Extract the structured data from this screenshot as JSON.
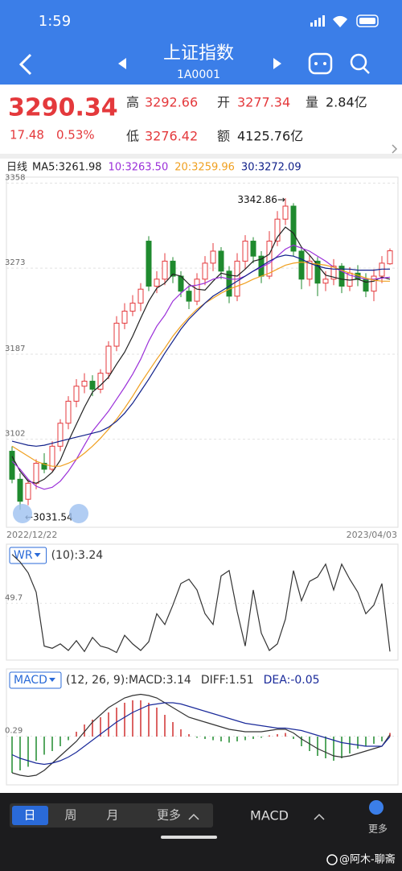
{
  "status": {
    "time": "1:59"
  },
  "header": {
    "title": "上证指数",
    "code": "1A0001"
  },
  "quote": {
    "price": "3290.34",
    "change": "17.48",
    "change_pct": "0.53%",
    "stats": [
      {
        "label": "高",
        "value": "3292.66"
      },
      {
        "label": "开",
        "value": "3277.34"
      },
      {
        "label": "量",
        "value": "2.84亿"
      },
      {
        "label": "低",
        "value": "3276.42"
      },
      {
        "label": "额",
        "value": "4125.76亿"
      }
    ]
  },
  "chart_data": [
    {
      "type": "candlestick",
      "period": "日线",
      "categories": [
        "2022/12/22",
        null,
        null,
        null,
        null,
        null,
        null,
        null,
        null,
        null,
        null,
        null,
        null,
        null,
        null,
        null,
        null,
        null,
        null,
        null,
        null,
        null,
        null,
        null,
        null,
        null,
        null,
        null,
        null,
        null,
        null,
        null,
        null,
        null,
        null,
        null,
        null,
        null,
        null,
        null,
        null,
        null,
        null,
        null,
        null,
        null,
        null,
        "2023/04/03"
      ],
      "open": [
        3090,
        3062,
        3042,
        3058,
        3078,
        3072,
        3095,
        3118,
        3140,
        3155,
        3160,
        3152,
        3168,
        3195,
        3218,
        3230,
        3238,
        3300,
        3255,
        3262,
        3280,
        3265,
        3250,
        3240,
        3262,
        3278,
        3290,
        3270,
        3245,
        3280,
        3300,
        3285,
        3265,
        3300,
        3322,
        3335,
        3290,
        3262,
        3280,
        3258,
        3262,
        3275,
        3255,
        3268,
        3262,
        3250,
        3265,
        3277.34
      ],
      "close": [
        3062,
        3040,
        3058,
        3078,
        3072,
        3095,
        3118,
        3140,
        3155,
        3160,
        3152,
        3168,
        3195,
        3218,
        3230,
        3238,
        3252,
        3255,
        3262,
        3280,
        3265,
        3250,
        3240,
        3262,
        3278,
        3290,
        3270,
        3245,
        3280,
        3300,
        3285,
        3265,
        3300,
        3322,
        3335,
        3290,
        3262,
        3280,
        3258,
        3262,
        3275,
        3255,
        3268,
        3262,
        3250,
        3265,
        3278,
        3290.34
      ],
      "high": [
        3095,
        3068,
        3062,
        3082,
        3088,
        3100,
        3122,
        3145,
        3162,
        3168,
        3166,
        3172,
        3200,
        3225,
        3238,
        3246,
        3258,
        3305,
        3270,
        3288,
        3284,
        3270,
        3256,
        3268,
        3285,
        3298,
        3294,
        3275,
        3288,
        3306,
        3304,
        3290,
        3310,
        3330,
        3342.86,
        3338,
        3294,
        3286,
        3284,
        3270,
        3282,
        3278,
        3274,
        3276,
        3268,
        3272,
        3285,
        3292.66
      ],
      "low": [
        3058,
        3031.54,
        3036,
        3052,
        3068,
        3070,
        3090,
        3112,
        3134,
        3148,
        3145,
        3148,
        3162,
        3190,
        3212,
        3225,
        3230,
        3250,
        3248,
        3256,
        3258,
        3244,
        3232,
        3236,
        3256,
        3270,
        3262,
        3238,
        3240,
        3272,
        3278,
        3258,
        3262,
        3295,
        3316,
        3285,
        3252,
        3255,
        3245,
        3250,
        3256,
        3248,
        3250,
        3255,
        3244,
        3240,
        3258,
        3276.42
      ],
      "up_color": "#e4393c",
      "down_color": "#1f8a2e",
      "max_label": "3342.86→",
      "min_label": "←3031.54",
      "series": [
        {
          "name": "MA5:3261.98",
          "color": "#222222",
          "values": [
            3085,
            3070,
            3060,
            3058,
            3062,
            3069,
            3081,
            3100,
            3117,
            3134,
            3149,
            3156,
            3164,
            3177,
            3189,
            3205,
            3223,
            3240,
            3253,
            3258,
            3267,
            3265,
            3257,
            3252,
            3251,
            3260,
            3268,
            3266,
            3265,
            3272,
            3280,
            3282,
            3287,
            3304,
            3314,
            3308,
            3294,
            3286,
            3276,
            3266,
            3264,
            3262,
            3261,
            3262,
            3259,
            3260,
            3264,
            3262
          ]
        },
        {
          "name": "10:3263.50",
          "color": "#9b30d9",
          "values": [
            3080,
            3072,
            3062,
            3055,
            3052,
            3054,
            3060,
            3070,
            3082,
            3096,
            3110,
            3120,
            3130,
            3142,
            3154,
            3167,
            3182,
            3200,
            3215,
            3226,
            3240,
            3248,
            3255,
            3256,
            3258,
            3262,
            3264,
            3262,
            3262,
            3265,
            3270,
            3274,
            3278,
            3285,
            3292,
            3296,
            3293,
            3290,
            3285,
            3280,
            3274,
            3270,
            3266,
            3264,
            3262,
            3262,
            3263,
            3264
          ]
        },
        {
          "name": "20:3259.96",
          "color": "#f0a020",
          "values": [
            3095,
            3090,
            3085,
            3080,
            3077,
            3075,
            3075,
            3078,
            3082,
            3088,
            3095,
            3103,
            3112,
            3122,
            3133,
            3145,
            3158,
            3170,
            3182,
            3193,
            3205,
            3215,
            3224,
            3232,
            3238,
            3243,
            3248,
            3252,
            3255,
            3258,
            3262,
            3265,
            3268,
            3272,
            3276,
            3278,
            3279,
            3278,
            3277,
            3276,
            3274,
            3271,
            3268,
            3266,
            3263,
            3261,
            3260,
            3260
          ]
        },
        {
          "name": "30:3272.09",
          "color": "#10208a",
          "values": [
            3100,
            3098,
            3096,
            3095,
            3096,
            3098,
            3100,
            3102,
            3104,
            3106,
            3108,
            3110,
            3114,
            3120,
            3128,
            3138,
            3150,
            3162,
            3175,
            3188,
            3200,
            3212,
            3222,
            3230,
            3238,
            3245,
            3250,
            3255,
            3260,
            3265,
            3270,
            3275,
            3280,
            3284,
            3286,
            3285,
            3282,
            3278,
            3275,
            3273,
            3272,
            3272,
            3272,
            3271,
            3271,
            3271,
            3272,
            3272
          ]
        }
      ],
      "ylim": [
        3014,
        3364
      ],
      "yticks": [
        3102,
        3187,
        3273,
        3358
      ],
      "grid": true
    },
    {
      "type": "line",
      "button": "WR",
      "params": "(10):3.24",
      "color": "#333333",
      "values": [
        95,
        88,
        78,
        60,
        10,
        8,
        12,
        6,
        15,
        5,
        18,
        10,
        8,
        4,
        20,
        12,
        6,
        14,
        40,
        30,
        48,
        68,
        72,
        62,
        40,
        30,
        75,
        80,
        42,
        10,
        62,
        22,
        6,
        12,
        35,
        80,
        52,
        70,
        74,
        86,
        62,
        86,
        72,
        60,
        40,
        48,
        68,
        5
      ],
      "ylim": [
        0,
        100
      ],
      "yticks": [
        49.7
      ],
      "grid": false
    },
    {
      "type": "macd",
      "button": "MACD",
      "params": "(12, 26, 9):MACD:3.14",
      "series": [
        {
          "name": "DIFF:1.51",
          "color": "#333333",
          "values": [
            -30,
            -32,
            -33,
            -32,
            -28,
            -22,
            -16,
            -10,
            -4,
            4,
            12,
            18,
            24,
            28,
            32,
            34,
            35,
            34,
            32,
            28,
            24,
            20,
            16,
            14,
            12,
            10,
            8,
            6,
            5,
            4,
            4,
            4,
            5,
            6,
            6,
            3,
            -2,
            -6,
            -10,
            -13,
            -16,
            -17,
            -16,
            -14,
            -12,
            -10,
            -8,
            1.51
          ]
        },
        {
          "name": "DEA:-0.05",
          "color": "#1a2a9a",
          "values": [
            -15,
            -18,
            -20,
            -22,
            -23,
            -22,
            -20,
            -17,
            -13,
            -8,
            -3,
            2,
            7,
            12,
            16,
            20,
            23,
            26,
            27,
            28,
            28,
            27,
            25,
            23,
            21,
            19,
            17,
            15,
            13,
            11,
            10,
            9,
            8,
            7,
            7,
            6,
            5,
            3,
            1,
            -1,
            -3,
            -5,
            -6,
            -7,
            -8,
            -8,
            -8,
            -0.05
          ]
        }
      ],
      "histogram": {
        "up_color": "#d03030",
        "down_color": "#1f8a2e",
        "values": [
          -30,
          -28,
          -25,
          -20,
          -15,
          -12,
          -8,
          -3,
          4,
          10,
          14,
          16,
          20,
          24,
          28,
          30,
          30,
          28,
          24,
          18,
          12,
          6,
          2,
          -1,
          -2,
          -3,
          -4,
          -5,
          -4,
          -3,
          -2,
          -1,
          1,
          2,
          3,
          -2,
          -8,
          -12,
          -16,
          -18,
          -20,
          -18,
          -14,
          -10,
          -8,
          -6,
          -4,
          3
        ]
      },
      "ylim": [
        -40,
        40
      ],
      "yticks": [
        0.29
      ],
      "grid": false
    }
  ],
  "bottom_bar": {
    "periods": [
      "日",
      "周",
      "月",
      "更多"
    ],
    "indicator": "MACD",
    "more": "更多"
  },
  "watermark": "@阿木-聊斋"
}
